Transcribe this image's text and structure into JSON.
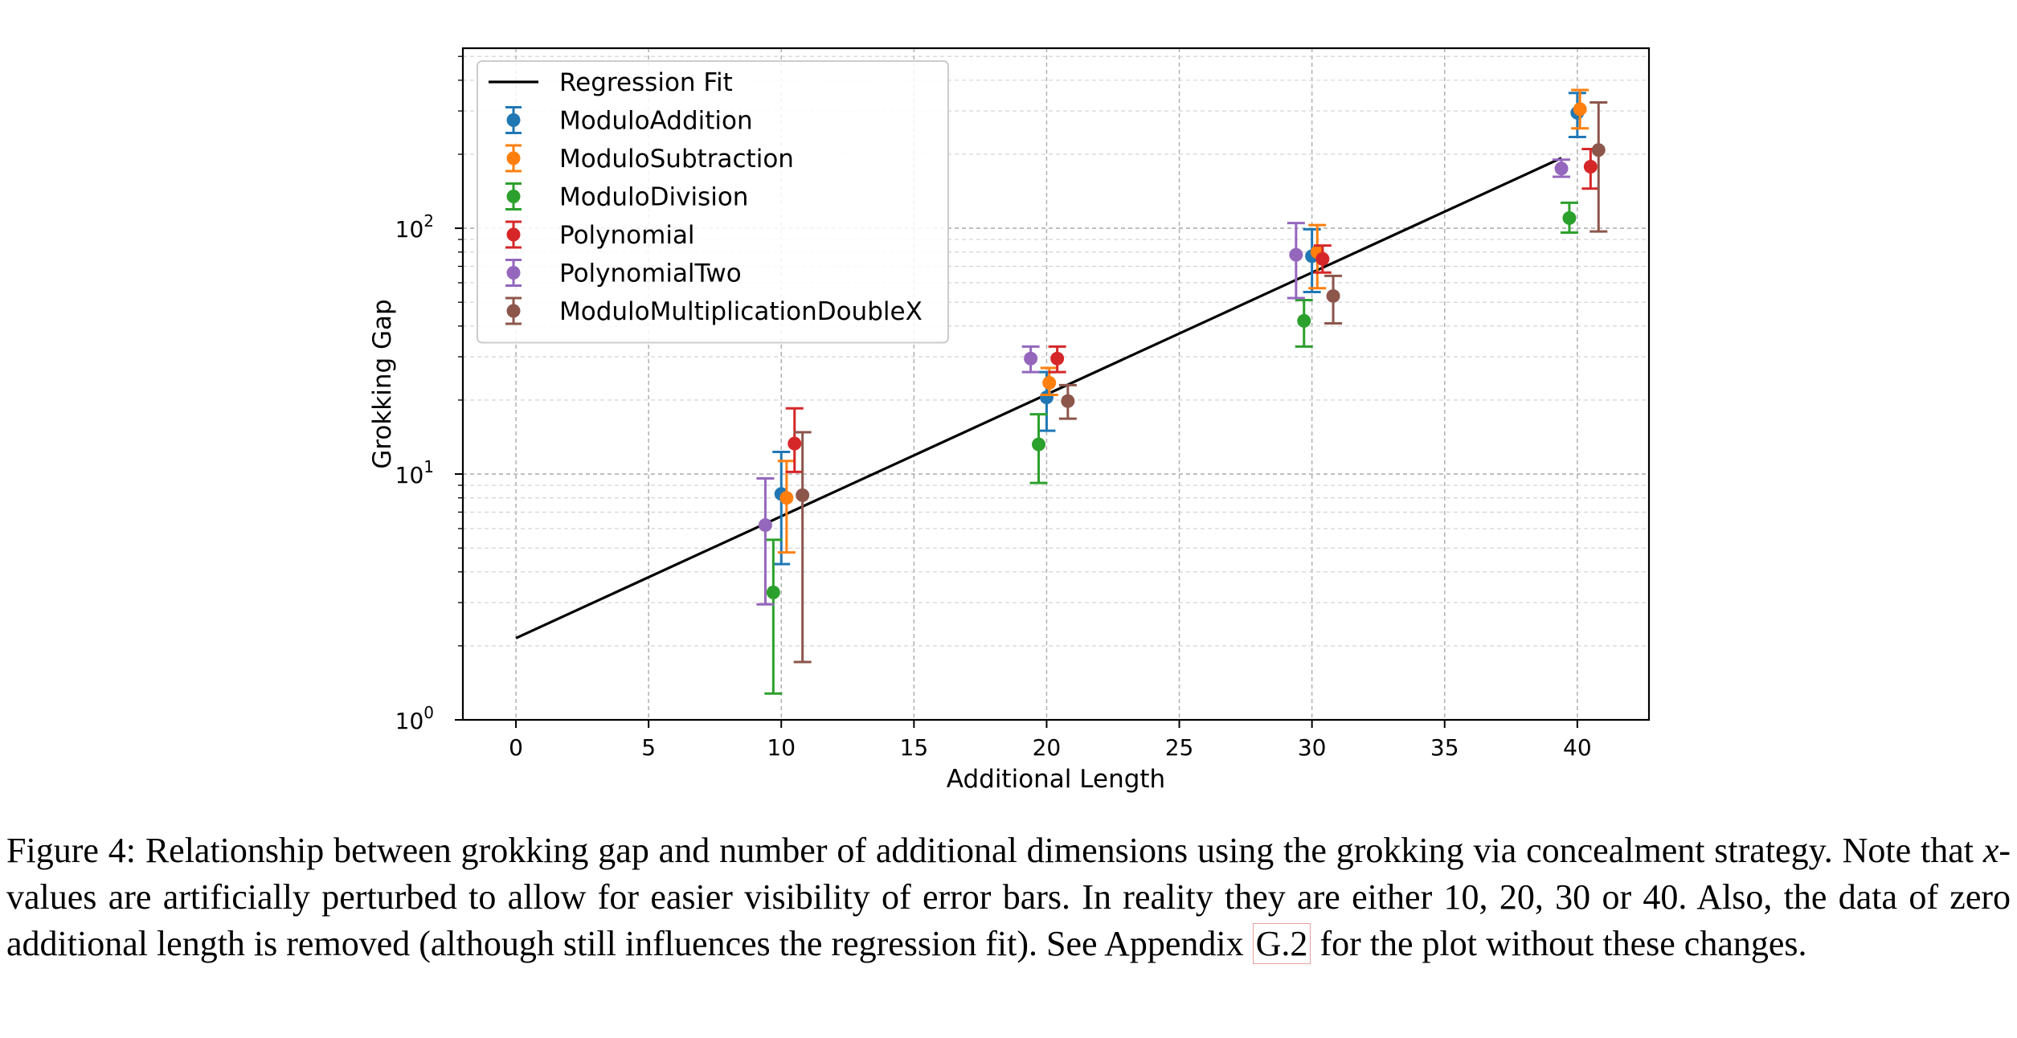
{
  "chart_data": {
    "type": "scatter",
    "title": "",
    "xlabel": "Additional Length",
    "ylabel": "Grokking Gap",
    "yscale": "log",
    "xlim": [
      -2.0,
      42.7
    ],
    "ylim": [
      1.0,
      540
    ],
    "xticks": [
      0,
      5,
      10,
      15,
      20,
      25,
      30,
      35,
      40
    ],
    "yticks": [
      1,
      10,
      100
    ],
    "ytick_labels": [
      "10",
      "10",
      "10"
    ],
    "ytick_exponents": [
      "0",
      "1",
      "2"
    ],
    "grid": true,
    "legend_position": "top-left",
    "regression_fit": {
      "name": "Regression Fit",
      "color": "#000000",
      "x": [
        0,
        39.4
      ],
      "y": [
        2.15,
        193
      ]
    },
    "series": [
      {
        "name": "ModuloAddition",
        "color": "#1f77b4",
        "x": [
          10.0,
          20.0,
          30.0,
          40.0
        ],
        "y": [
          8.3,
          20.5,
          77,
          295
        ],
        "err_low": [
          4.3,
          15.0,
          55,
          235
        ],
        "err_high": [
          12.3,
          26.0,
          99,
          355
        ]
      },
      {
        "name": "ModuloSubtraction",
        "color": "#ff7f0e",
        "x": [
          10.2,
          20.1,
          30.2,
          40.1
        ],
        "y": [
          8.0,
          23.5,
          80,
          305
        ],
        "err_low": [
          4.8,
          21.0,
          57,
          255
        ],
        "err_high": [
          11.3,
          27.0,
          103,
          365
        ]
      },
      {
        "name": "ModuloDivision",
        "color": "#2ca02c",
        "x": [
          9.7,
          19.7,
          29.7,
          39.7
        ],
        "y": [
          3.3,
          13.2,
          42,
          110
        ],
        "err_low": [
          1.28,
          9.2,
          33,
          96
        ],
        "err_high": [
          5.4,
          17.5,
          51,
          127
        ]
      },
      {
        "name": "Polynomial",
        "color": "#d62728",
        "x": [
          10.5,
          20.4,
          30.4,
          40.5
        ],
        "y": [
          13.3,
          29.5,
          75,
          178
        ],
        "err_low": [
          10.2,
          26.0,
          66,
          145
        ],
        "err_high": [
          18.5,
          33.0,
          85,
          210
        ]
      },
      {
        "name": "PolynomialTwo",
        "color": "#9467bd",
        "x": [
          9.4,
          19.4,
          29.4,
          39.4
        ],
        "y": [
          6.2,
          29.5,
          78,
          175
        ],
        "err_low": [
          2.95,
          26.0,
          52,
          162
        ],
        "err_high": [
          9.6,
          33.0,
          105,
          190
        ]
      },
      {
        "name": "ModuloMultiplicationDoubleX",
        "color": "#8c564b",
        "x": [
          10.8,
          20.8,
          30.8,
          40.8
        ],
        "y": [
          8.2,
          19.8,
          53,
          208
        ],
        "err_low": [
          1.72,
          16.8,
          41,
          97
        ],
        "err_high": [
          14.8,
          23.0,
          64,
          325
        ]
      }
    ]
  },
  "caption": {
    "label": "Figure 4:",
    "part1": "Relationship between grokking gap and number of additional dimensions using the grokking via concealment strategy. Note that ",
    "math_x": "x",
    "part2": "-values are artificially perturbed to allow for easier visibility of error bars. In reality they are either 10, 20, 30 or 40. Also, the data of zero additional length is removed (although still influences the regression fit). See Appendix ",
    "ref": "G.2",
    "part3": " for the plot without these changes."
  }
}
